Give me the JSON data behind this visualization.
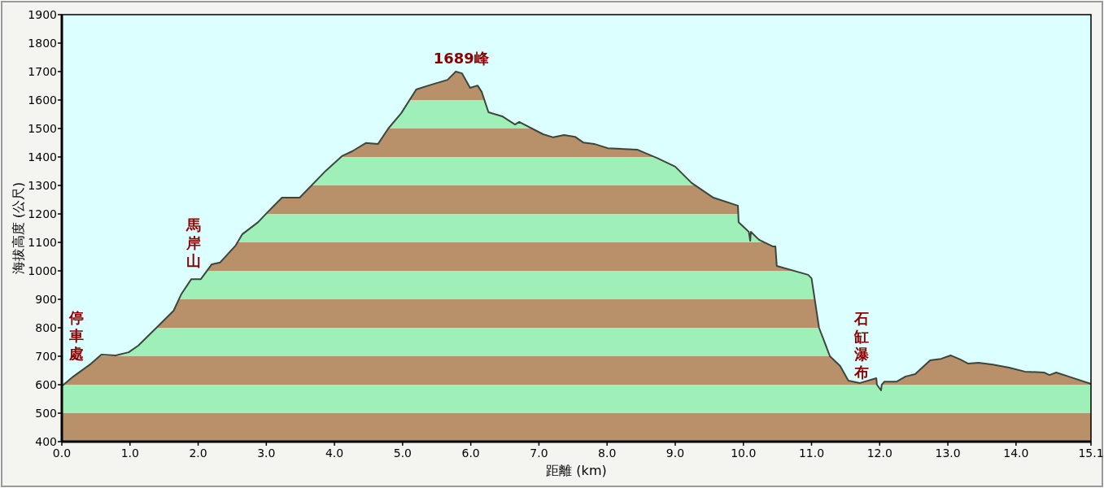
{
  "chart_data": {
    "type": "area",
    "xlabel": "距離 (km)",
    "ylabel": "海拔高度 (公尺)",
    "x": [
      0.0,
      0.17,
      0.43,
      0.58,
      0.79,
      0.98,
      1.12,
      1.4,
      1.64,
      1.75,
      1.9,
      2.04,
      2.2,
      2.32,
      2.55,
      2.65,
      2.88,
      3.03,
      3.23,
      3.49,
      3.87,
      4.11,
      4.26,
      4.46,
      4.64,
      4.79,
      4.98,
      5.2,
      5.38,
      5.66,
      5.78,
      5.87,
      5.99,
      6.1,
      6.16,
      6.26,
      6.46,
      6.65,
      6.71,
      7.06,
      7.21,
      7.37,
      7.53,
      7.65,
      7.81,
      8.01,
      8.44,
      8.73,
      9.0,
      9.24,
      9.56,
      9.92,
      9.93,
      10.08,
      10.1,
      10.11,
      10.23,
      10.43,
      10.47,
      10.49,
      10.95,
      11.0,
      11.11,
      11.27,
      11.42,
      11.54,
      11.71,
      11.95,
      11.96,
      12.02,
      12.03,
      12.07,
      12.25,
      12.38,
      12.52,
      12.74,
      12.9,
      13.04,
      13.18,
      13.3,
      13.45,
      13.66,
      13.9,
      14.13,
      14.41,
      14.49,
      14.59,
      14.77,
      15.1
    ],
    "series": [
      {
        "color": "#3c463c",
        "values": [
          595,
          629,
          674,
          706,
          703,
          714,
          737,
          803,
          860,
          917,
          971,
          971,
          1023,
          1029,
          1089,
          1129,
          1171,
          1209,
          1257,
          1257,
          1351,
          1403,
          1420,
          1449,
          1446,
          1500,
          1554,
          1637,
          1651,
          1671,
          1700,
          1694,
          1643,
          1651,
          1629,
          1557,
          1543,
          1514,
          1523,
          1480,
          1469,
          1477,
          1471,
          1451,
          1446,
          1431,
          1426,
          1397,
          1366,
          1309,
          1257,
          1229,
          1171,
          1137,
          1106,
          1137,
          1109,
          1086,
          1086,
          1017,
          986,
          974,
          800,
          700,
          666,
          614,
          606,
          623,
          600,
          580,
          600,
          611,
          611,
          629,
          637,
          686,
          691,
          703,
          689,
          674,
          677,
          671,
          660,
          646,
          643,
          634,
          643,
          629,
          603
        ]
      }
    ],
    "xlim": [
      0,
      15.1
    ],
    "xticks": [
      {
        "value": 0,
        "label": "0.0"
      },
      {
        "value": 1,
        "label": "1.0"
      },
      {
        "value": 2,
        "label": "2.0"
      },
      {
        "value": 3,
        "label": "3.0"
      },
      {
        "value": 4,
        "label": "4.0"
      },
      {
        "value": 5,
        "label": "5.0"
      },
      {
        "value": 6,
        "label": "6.0"
      },
      {
        "value": 7,
        "label": "7.0"
      },
      {
        "value": 8,
        "label": "8.0"
      },
      {
        "value": 9,
        "label": "9.0"
      },
      {
        "value": 10,
        "label": "10.0"
      },
      {
        "value": 11,
        "label": "11.0"
      },
      {
        "value": 12,
        "label": "12.0"
      },
      {
        "value": 13,
        "label": "13.0"
      },
      {
        "value": 14,
        "label": "14.0"
      },
      {
        "value": 15.1,
        "label": "15.1"
      }
    ],
    "ylim": [
      400,
      1900
    ],
    "yticks": [
      400,
      500,
      600,
      700,
      800,
      900,
      1000,
      1100,
      1200,
      1300,
      1400,
      1500,
      1600,
      1700,
      1800,
      1900
    ],
    "annotations": [
      "停車處",
      "馬岸山",
      "1689峰",
      "石缸瀑布"
    ],
    "grid": false
  }
}
